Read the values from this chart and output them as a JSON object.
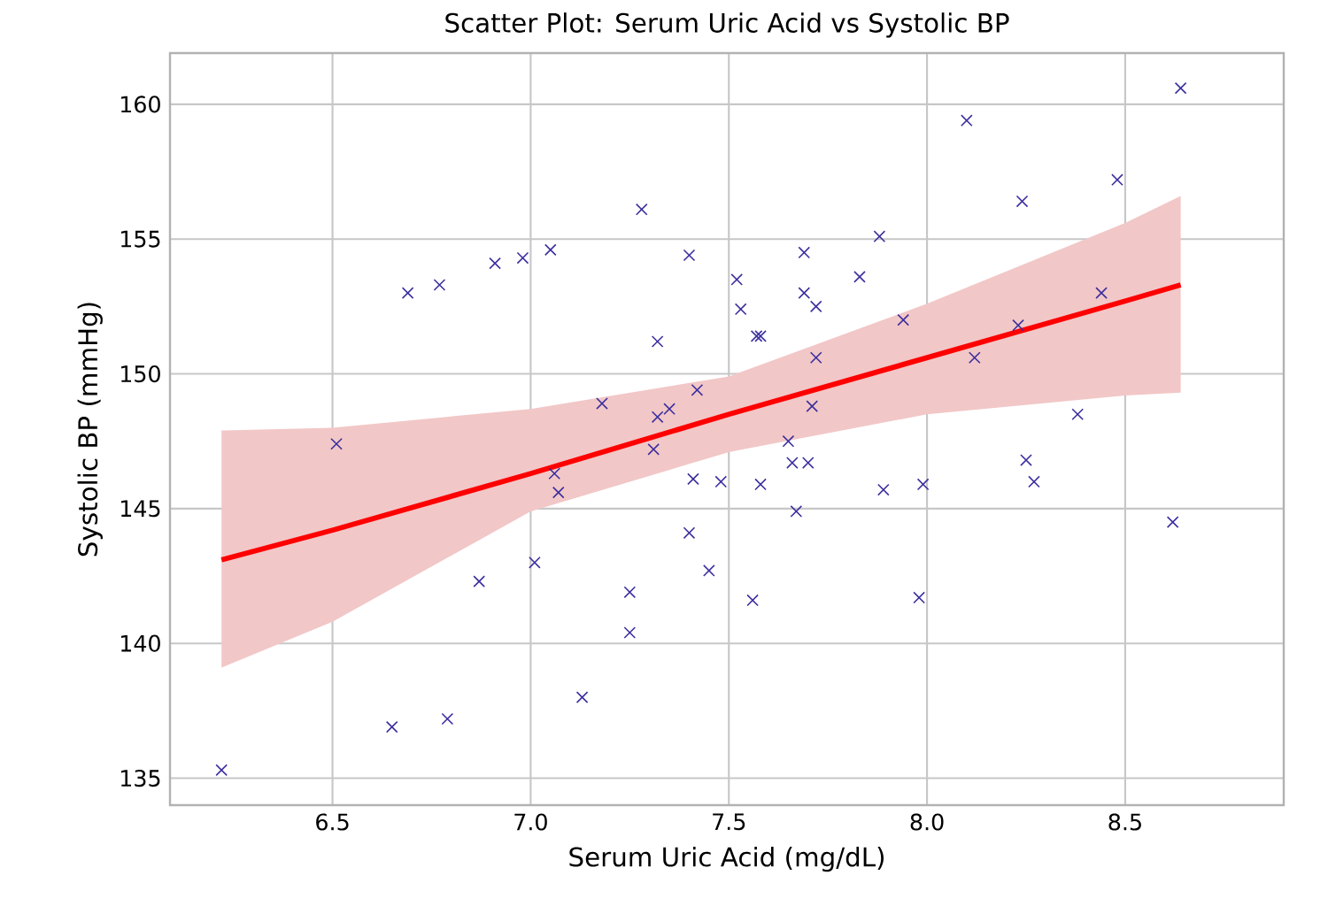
{
  "chart_data": {
    "type": "scatter",
    "title": "Scatter Plot: Serum Uric Acid vs Systolic BP",
    "xlabel": "Serum Uric Acid (mg/dL)",
    "ylabel": "Systolic BP (mmHg)",
    "xlim": [
      6.09,
      8.9
    ],
    "ylim": [
      134.0,
      161.9
    ],
    "xticks": [
      {
        "value": 6.5,
        "label": "6.5"
      },
      {
        "value": 7,
        "label": "7.0"
      },
      {
        "value": 7.5,
        "label": "7.5"
      },
      {
        "value": 8,
        "label": "8.0"
      },
      {
        "value": 8.5,
        "label": "8.5"
      }
    ],
    "yticks": [
      135,
      140,
      145,
      150,
      155,
      160
    ],
    "grid": true,
    "series": [
      {
        "color": "#3b2f9e",
        "marker": "cross",
        "x": [
          7.28,
          7.4,
          7.05,
          6.98,
          6.91,
          6.77,
          6.69,
          7.32,
          7.52,
          7.18,
          7.32,
          7.35,
          7.42,
          6.51,
          8.64,
          8.1,
          8.48,
          8.24,
          7.88,
          7.69,
          7.83,
          7.53,
          7.69,
          7.72,
          7.57,
          7.58,
          7.94,
          8.44,
          8.23,
          7.72,
          8.12,
          7.71,
          8.38,
          7.65,
          7.31,
          7.06,
          7.07,
          7.41,
          7.48,
          7.4,
          7.45,
          7.01,
          6.87,
          7.25,
          7.25,
          7.13,
          6.79,
          6.65,
          6.22,
          7.66,
          7.7,
          7.58,
          7.67,
          7.89,
          7.99,
          8.25,
          8.27,
          8.62,
          7.56,
          7.98
        ],
        "values": [
          156.1,
          154.4,
          154.6,
          154.3,
          154.1,
          153.3,
          153.0,
          151.2,
          153.5,
          148.9,
          148.4,
          148.7,
          149.4,
          147.4,
          160.6,
          159.4,
          157.2,
          156.4,
          155.1,
          154.5,
          153.6,
          152.4,
          153.0,
          152.5,
          151.4,
          151.4,
          152.0,
          153.0,
          151.8,
          150.6,
          150.6,
          148.8,
          148.5,
          147.5,
          147.2,
          146.3,
          145.6,
          146.1,
          146.0,
          144.1,
          142.7,
          143.0,
          142.3,
          141.9,
          140.4,
          138.0,
          137.2,
          136.9,
          135.3,
          146.7,
          146.7,
          145.9,
          144.9,
          145.7,
          145.9,
          146.8,
          146.0,
          144.5,
          141.6,
          141.7
        ]
      },
      {
        "type": "line",
        "color": "#ff0000",
        "x": [
          6.22,
          6.5,
          7.0,
          7.5,
          8.0,
          8.5,
          8.64
        ],
        "values": [
          143.1,
          144.2,
          146.3,
          148.5,
          150.6,
          152.7,
          153.3
        ],
        "lower": [
          139.1,
          140.8,
          144.9,
          147.1,
          148.5,
          149.2,
          149.3
        ],
        "upper": [
          147.9,
          148.0,
          148.7,
          149.9,
          152.6,
          155.6,
          156.6
        ]
      }
    ]
  }
}
